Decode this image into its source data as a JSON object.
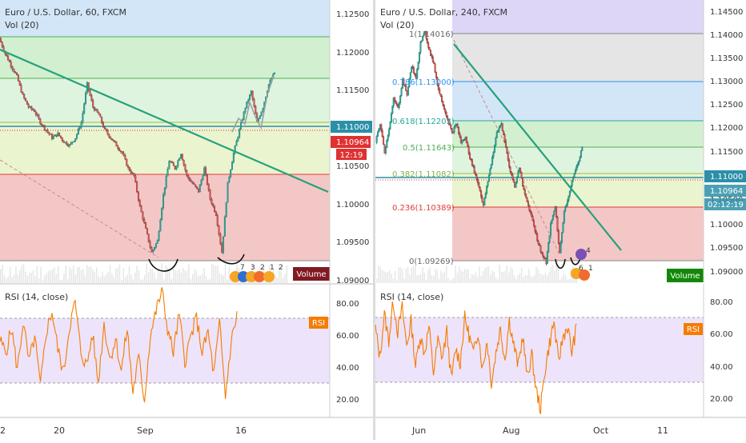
{
  "colors": {
    "candle_up": "#26a69a",
    "candle_down": "#ef5350",
    "trendline": "#26a17b",
    "rsi_line": "#f57c00",
    "rsi_band": "#e8dcfa",
    "price_tag": "#2b8fa8",
    "prev_tag": "#e03131",
    "volume_left": "#801922",
    "volume_right": "#138808",
    "fib_red": "#f4c7c7",
    "fib_yellow": "#eaf4cf",
    "fib_green": "#d2efd0",
    "fib_blue": "#d3e6f7",
    "fib_purple": "#ddd6f7",
    "fib_grey": "#e5e5e5"
  },
  "left": {
    "title": "Euro / U.S. Dollar, 60, FXCM",
    "vol_label": "Vol (20)",
    "volume_button": "Volume",
    "rsi_label": "RSI (14, close)",
    "rsi_tag": "RSI",
    "price_tag": "1.11000",
    "prev_close_tag": "1.10964",
    "countdown_tag": "12:19",
    "price_ticks": [
      "1.12500",
      "1.12000",
      "1.11500",
      "1.11000",
      "1.10500",
      "1.10000",
      "1.09500",
      "1.09000"
    ],
    "rsi_ticks": [
      "80.00",
      "60.00",
      "40.00",
      "20.00"
    ],
    "x_ticks": [
      "2",
      "20",
      "Sep",
      "16"
    ],
    "event_markers": [
      "7",
      "3",
      "2",
      "1",
      "2"
    ]
  },
  "right": {
    "title": "Euro / U.S. Dollar, 240, FXCM",
    "vol_label": "Vol (20)",
    "volume_button": "Volume",
    "rsi_label": "RSI (14, close)",
    "rsi_tag": "RSI",
    "price_tag": "1.11000",
    "prev_close_tag": "1.10964",
    "countdown_tag": "02:12:19",
    "price_ticks": [
      "1.14500",
      "1.14000",
      "1.13500",
      "1.13000",
      "1.12500",
      "1.12000",
      "1.11500",
      "1.11000",
      "1.10500",
      "1.10000",
      "1.09500",
      "1.09000"
    ],
    "rsi_ticks": [
      "80.00",
      "60.00",
      "40.00",
      "20.00"
    ],
    "x_ticks": [
      "Jun",
      "Aug",
      "Oct",
      "11"
    ],
    "fib_labels": [
      "1(1.14016)",
      "0.786(1.13000)",
      "0.618(1.12203)",
      "0.5(1.11643)",
      "0.382(1.11082)",
      "0.236(1.10389)",
      "0(1.09269)"
    ],
    "event_markers": [
      "4",
      "6",
      "1"
    ]
  },
  "chart_data": [
    {
      "type": "line",
      "title": "Euro / U.S. Dollar, 60, FXCM",
      "panel": "price",
      "timeframe": "60",
      "x_ticks": [
        "2",
        "20",
        "Sep",
        "16"
      ],
      "ylim": [
        1.0895,
        1.1265
      ],
      "series": [
        {
          "values": [
            1.1215,
            1.1195,
            1.118,
            1.1165,
            1.114,
            1.1125,
            1.112,
            1.1105,
            1.1095,
            1.1085,
            1.109,
            1.108,
            1.1075,
            1.1085,
            1.1105,
            1.1155,
            1.1125,
            1.1115,
            1.1095,
            1.1085,
            1.1075,
            1.1065,
            1.1045,
            1.1035,
            1.0995,
            1.0965,
            1.0935,
            1.095,
            1.101,
            1.1055,
            1.1045,
            1.1065,
            1.1035,
            1.1025,
            1.1015,
            1.1045,
            1.1005,
            1.0985,
            1.0935,
            1.1025,
            1.1065,
            1.1095,
            1.1125,
            1.1145,
            1.1105,
            1.1125,
            1.1155,
            1.117
          ]
        }
      ],
      "current_price": 1.11,
      "prev_close": 1.10964
    },
    {
      "type": "line",
      "title": "RSI (14, close)",
      "panel": "rsi",
      "timeframe": "60",
      "ylim": [
        10,
        88
      ],
      "bands": [
        30,
        70
      ],
      "series": [
        {
          "values": [
            55,
            48,
            62,
            38,
            66,
            42,
            57,
            28,
            60,
            72,
            50,
            36,
            63,
            77,
            48,
            40,
            59,
            30,
            65,
            44,
            56,
            37,
            62,
            25,
            45,
            20,
            58,
            72,
            84,
            62,
            48,
            70,
            43,
            57,
            68,
            48,
            60,
            35,
            65,
            22,
            54,
            70
          ]
        }
      ]
    },
    {
      "type": "line",
      "title": "Euro / U.S. Dollar, 240, FXCM",
      "panel": "price",
      "timeframe": "240",
      "x_ticks": [
        "Jun",
        "Aug",
        "Oct",
        "11"
      ],
      "ylim": [
        1.0885,
        1.147
      ],
      "series": [
        {
          "values": [
            1.1175,
            1.1215,
            1.1155,
            1.1205,
            1.1265,
            1.1245,
            1.1305,
            1.1275,
            1.1335,
            1.1305,
            1.1385,
            1.1402,
            1.1365,
            1.1335,
            1.1285,
            1.1255,
            1.1225,
            1.1195,
            1.1215,
            1.1175,
            1.1185,
            1.1145,
            1.1115,
            1.1085,
            1.1045,
            1.1095,
            1.1145,
            1.1195,
            1.1215,
            1.1165,
            1.1115,
            1.1085,
            1.1125,
            1.1075,
            1.1045,
            1.1015,
            1.0975,
            1.0945,
            1.0927,
            1.1005,
            1.1045,
            1.0945,
            1.1035,
            1.1065,
            1.1105,
            1.113,
            1.1165
          ]
        }
      ],
      "fibonacci": [
        {
          "level": "1",
          "price": 1.14016
        },
        {
          "level": "0.786",
          "price": 1.13
        },
        {
          "level": "0.618",
          "price": 1.12203
        },
        {
          "level": "0.5",
          "price": 1.11643
        },
        {
          "level": "0.382",
          "price": 1.11082
        },
        {
          "level": "0.236",
          "price": 1.10389
        },
        {
          "level": "0",
          "price": 1.09269
        }
      ],
      "current_price": 1.11,
      "prev_close": 1.10964
    },
    {
      "type": "line",
      "title": "RSI (14, close)",
      "panel": "rsi",
      "timeframe": "240",
      "ylim": [
        10,
        88
      ],
      "bands": [
        30,
        70
      ],
      "series": [
        {
          "values": [
            62,
            45,
            70,
            55,
            78,
            60,
            74,
            52,
            66,
            40,
            58,
            48,
            63,
            36,
            55,
            45,
            60,
            32,
            50,
            42,
            68,
            58,
            47,
            61,
            38,
            55,
            30,
            48,
            62,
            44,
            67,
            52,
            40,
            58,
            33,
            47,
            26,
            15,
            38,
            53,
            66,
            42,
            57,
            63,
            48,
            62
          ]
        }
      ]
    }
  ]
}
